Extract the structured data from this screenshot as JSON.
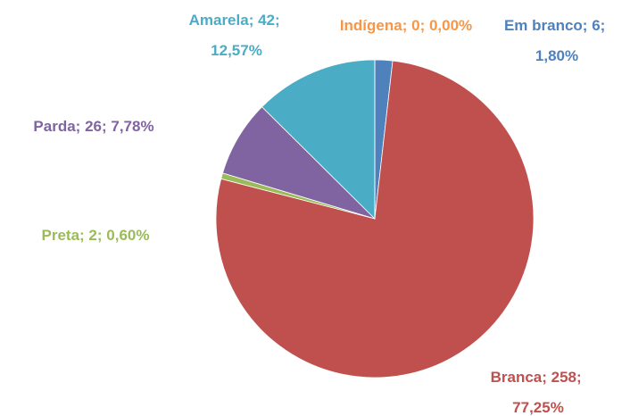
{
  "chart_data": {
    "type": "pie",
    "categories": [
      "Em branco",
      "Branca",
      "Preta",
      "Parda",
      "Amarela",
      "Indígena"
    ],
    "values": [
      6,
      258,
      2,
      26,
      42,
      0
    ],
    "percents": [
      1.8,
      77.25,
      0.6,
      7.78,
      12.57,
      0
    ],
    "percent_labels": [
      "1,80%",
      "77,25%",
      "0,60%",
      "7,78%",
      "12,57%",
      "0,00%"
    ],
    "label_separator": "; ",
    "colors": [
      "#4f81bd",
      "#c0504d",
      "#9bbb59",
      "#8064a2",
      "#4bacc6",
      "#f79646"
    ]
  }
}
